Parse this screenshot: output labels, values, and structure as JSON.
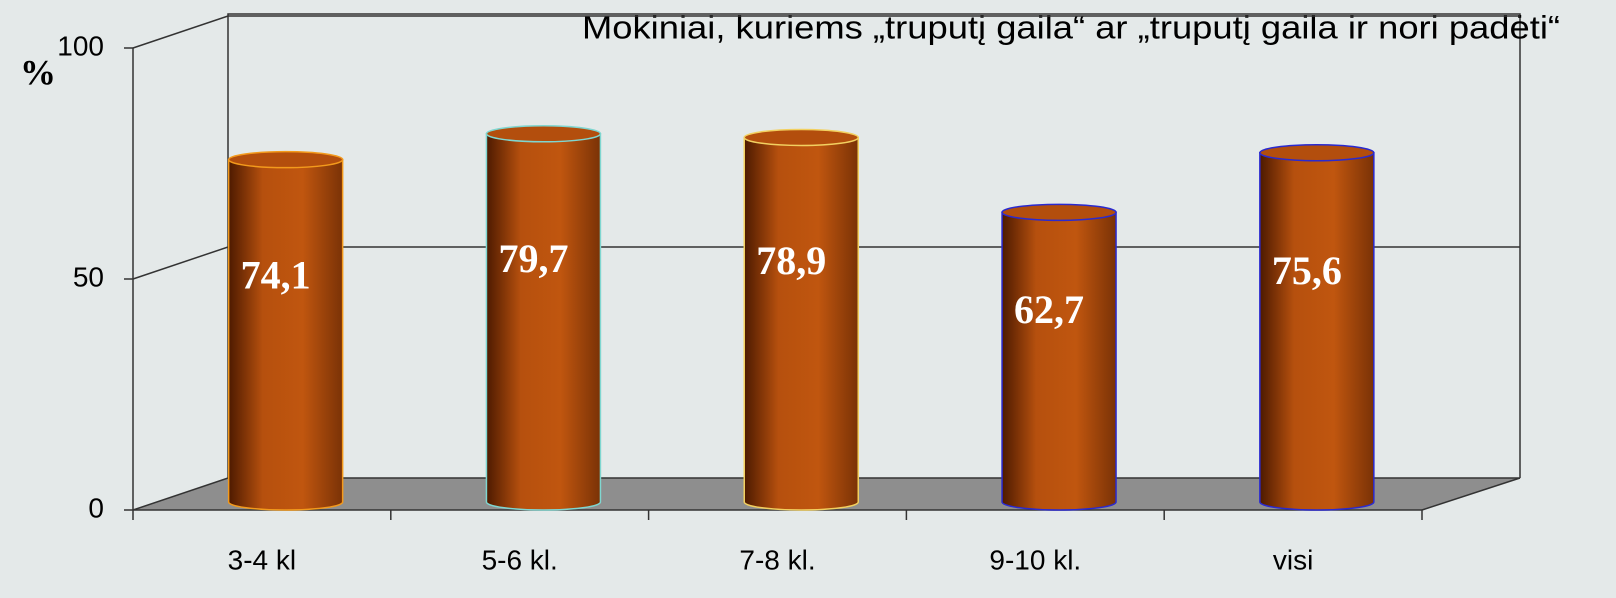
{
  "chart_data": {
    "type": "bar",
    "title": "Mokiniai, kuriems „truputį gaila“ ar „truputį gaila ir nori padėti“",
    "y_label": "%",
    "categories": [
      "3-4 kl",
      "5-6 kl.",
      "7-8 kl.",
      "9-10 kl.",
      "visi"
    ],
    "values": [
      74.1,
      79.7,
      78.9,
      62.7,
      75.6
    ],
    "value_labels": [
      "74,1",
      "79,7",
      "78,9",
      "62,7",
      "75,6"
    ],
    "color": "#c0560f",
    "edge_colors": [
      "#f39a1c",
      "#7fd6d0",
      "#f2d060",
      "#2a2ad0",
      "#2a2ad0"
    ],
    "ylim": [
      0,
      100
    ],
    "yticks": [
      0,
      50,
      100
    ],
    "grid": true
  }
}
